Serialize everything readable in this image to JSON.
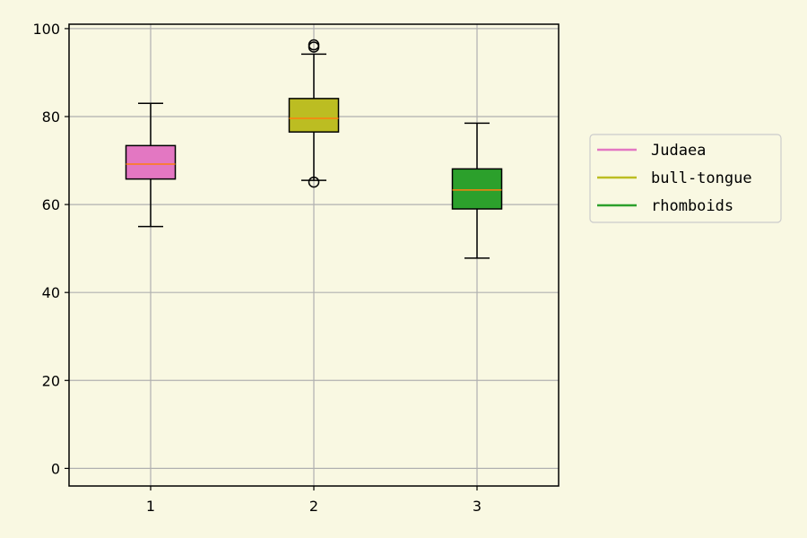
{
  "chart_data": {
    "type": "boxplot",
    "categories": [
      "1",
      "2",
      "3"
    ],
    "series": [
      {
        "name": "Judaea",
        "color": "#e377c2",
        "whisker_low": 55,
        "q1": 65.8,
        "median": 69.2,
        "q3": 73.4,
        "whisker_high": 83,
        "outliers": []
      },
      {
        "name": "bull-tongue",
        "color": "#bcbd22",
        "whisker_low": 65.5,
        "q1": 76.5,
        "median": 79.6,
        "q3": 84.1,
        "whisker_high": 94.2,
        "outliers": [
          65.1,
          95.8,
          96.3
        ]
      },
      {
        "name": "rhomboids",
        "color": "#2ca02c",
        "whisker_low": 47.8,
        "q1": 59,
        "median": 63.3,
        "q3": 68.1,
        "whisker_high": 78.5,
        "outliers": []
      }
    ],
    "median_color": "#ff7f0e",
    "ylim": [
      -4,
      101
    ],
    "yticks": [
      "0",
      "20",
      "40",
      "60",
      "80",
      "100"
    ],
    "grid": true,
    "legend_position": "right"
  }
}
